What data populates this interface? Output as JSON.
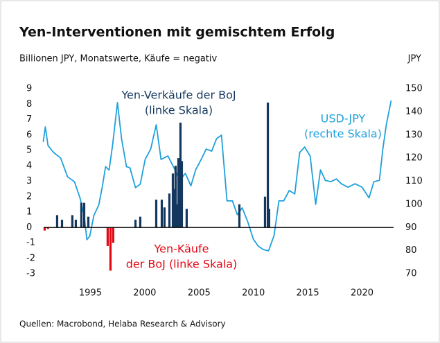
{
  "chart_data": {
    "type": "bar",
    "title": "Yen-Interventionen mit gemischtem Erfolg",
    "subtitle": "Billionen JPY, Monatswerte, Käufe = negativ",
    "y2_label": "JPY",
    "source": "Quellen: Macrobond, Helaba Research & Advisory",
    "xlim": [
      1990.7,
      2022.9
    ],
    "xticks": [
      1995,
      2000,
      2005,
      2010,
      2015,
      2020
    ],
    "ylim": [
      -3,
      9
    ],
    "yticks": [
      -3,
      -2,
      -1,
      0,
      1,
      2,
      3,
      4,
      5,
      6,
      7,
      8,
      9
    ],
    "y2lim": [
      70,
      150
    ],
    "y2ticks": [
      70,
      80,
      90,
      100,
      110,
      120,
      130,
      140,
      150
    ],
    "series": [
      {
        "label": [
          "Yen-Verkäufe der BoJ",
          "(linke Skala)"
        ],
        "type": "bar",
        "color": "#14375e",
        "x": [
          1991.94,
          1992.39,
          1993.34,
          1993.66,
          1994.17,
          1994.43,
          1994.81,
          1999.15,
          1999.59,
          2001.06,
          2001.57,
          2001.82,
          2002.27,
          2002.59,
          2002.72,
          2002.84,
          2002.97,
          2003.1,
          2003.29,
          2003.42,
          2003.86,
          2008.71,
          2011.07,
          2011.33,
          2011.45
        ],
        "values": [
          0.8,
          0.5,
          0.8,
          0.5,
          1.6,
          1.6,
          0.7,
          0.5,
          0.7,
          1.8,
          1.8,
          1.3,
          2.2,
          3.5,
          2.5,
          4.0,
          1.5,
          4.5,
          6.8,
          4.3,
          1.2,
          1.5,
          2.0,
          8.1,
          1.2
        ]
      },
      {
        "label": [
          "Yen-Käufe",
          "der BoJ (linke Skala)"
        ],
        "type": "bar",
        "color": "#e30613",
        "x": [
          1990.79,
          1991.1,
          1996.59,
          1996.85,
          1997.1
        ],
        "values": [
          -0.2,
          -0.1,
          -1.2,
          -2.8,
          -1.0
        ]
      },
      {
        "label": [
          "USD-JPY",
          "(rechte Skala)"
        ],
        "type": "line",
        "axis": "y2",
        "color": "#1ea0dc",
        "x": [
          1990.66,
          1990.85,
          1991.1,
          1991.62,
          1992.26,
          1992.9,
          1993.53,
          1994.04,
          1994.43,
          1994.68,
          1994.94,
          1995.32,
          1995.77,
          1996.08,
          1996.4,
          1996.72,
          1997.04,
          1997.49,
          1997.87,
          1998.32,
          1998.64,
          1999.15,
          1999.59,
          2000.04,
          2000.55,
          2001.06,
          2001.5,
          2002.14,
          2002.78,
          2003.23,
          2003.74,
          2004.25,
          2004.69,
          2005.2,
          2005.65,
          2006.16,
          2006.61,
          2007.06,
          2007.57,
          2008.07,
          2008.52,
          2008.97,
          2009.48,
          2009.99,
          2010.43,
          2010.88,
          2011.39,
          2011.9,
          2012.35,
          2012.79,
          2013.3,
          2013.81,
          2014.26,
          2014.71,
          2015.22,
          2015.73,
          2016.17,
          2016.62,
          2017.13,
          2017.64,
          2018.09,
          2018.72,
          2019.36,
          2020.0,
          2020.64,
          2021.08,
          2021.59,
          2021.91,
          2022.23,
          2022.68
        ],
        "values": [
          127,
          133.5,
          125.4,
          122.4,
          120,
          111.9,
          109.8,
          102.8,
          95.2,
          84.7,
          86.2,
          95.2,
          99.7,
          107.2,
          116.3,
          114.8,
          125.4,
          144,
          128.4,
          116.3,
          115.8,
          107.2,
          108.7,
          119.4,
          123.9,
          134.4,
          119.4,
          120.9,
          114.9,
          110.4,
          113.4,
          108,
          114.9,
          119.4,
          123.9,
          123,
          128.4,
          129.9,
          101.5,
          101.5,
          95.5,
          98.5,
          92.5,
          85,
          82,
          80.5,
          79.9,
          86.5,
          101.5,
          101.5,
          106,
          104.5,
          122.4,
          124.8,
          120.9,
          100,
          114.9,
          110.4,
          109.8,
          111,
          108.9,
          107.4,
          108.9,
          107.4,
          102.8,
          109.8,
          110.4,
          123.9,
          134.4,
          144.9
        ]
      }
    ]
  }
}
